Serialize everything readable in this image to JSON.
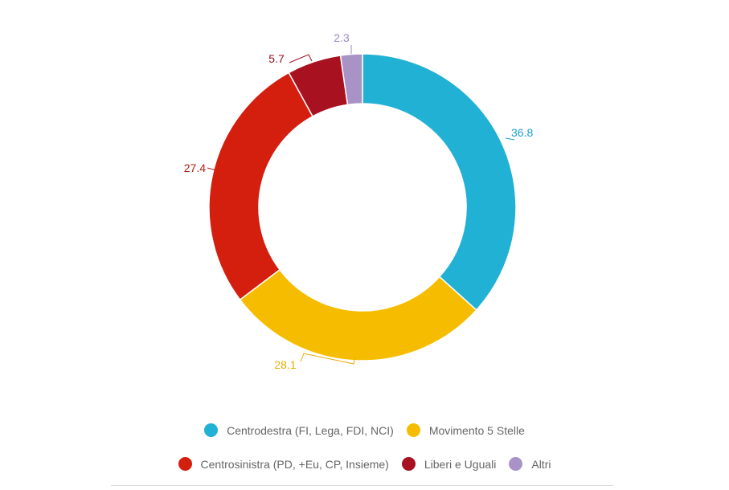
{
  "chart_data": {
    "type": "pie",
    "donut": true,
    "title": "",
    "legend_position": "bottom",
    "categories": [
      "Centrodestra (FI, Lega, FDI, NCI)",
      "Movimento 5 Stelle",
      "Centrosinistra (PD, +Eu, CP, Insieme)",
      "Liberi e Uguali",
      "Altri"
    ],
    "values": [
      36.8,
      28.1,
      27.4,
      5.7,
      2.3
    ],
    "value_labels": [
      "36.8",
      "28.1",
      "27.4",
      "5.7",
      "2.3"
    ],
    "colors": [
      "#21b1d5",
      "#f6bd00",
      "#d41e0e",
      "#a8111f",
      "#a892c6"
    ],
    "label_colors": [
      "#1a9ecb",
      "#e6ae00",
      "#b81b12",
      "#9c1020",
      "#9a87bd"
    ]
  }
}
